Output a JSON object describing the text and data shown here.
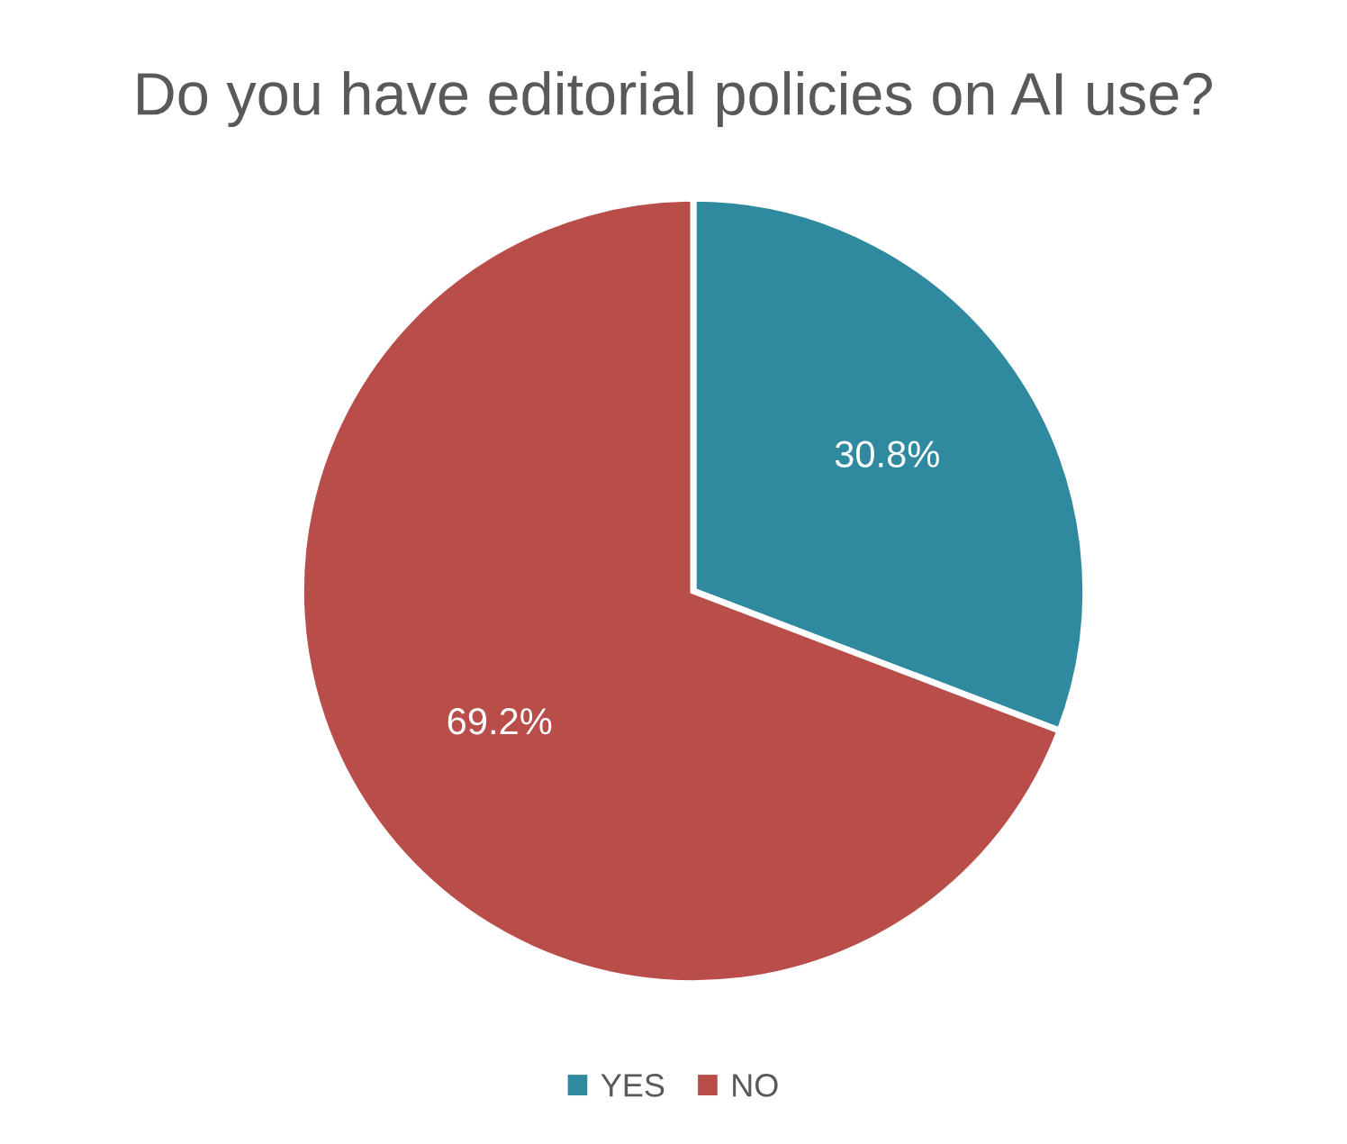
{
  "chart_data": {
    "type": "pie",
    "title": "Do you have editorial policies on AI use?",
    "categories": [
      "YES",
      "NO"
    ],
    "values": [
      30.8,
      69.2
    ],
    "colors": [
      "#2f8aa0",
      "#b94d4a"
    ],
    "value_labels": [
      "30.8%",
      "69.2%"
    ],
    "legend": "bottom"
  }
}
